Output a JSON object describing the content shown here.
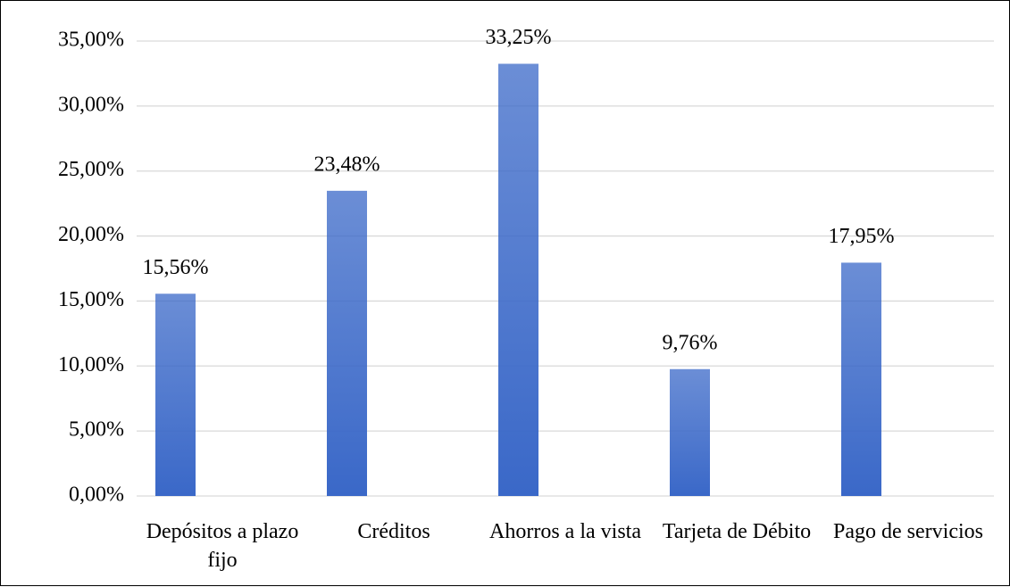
{
  "chart_data": {
    "type": "bar",
    "categories": [
      "Depósitos a plazo fijo",
      "Créditos",
      "Ahorros a la vista",
      "Tarjeta de Débito",
      "Pago de servicios"
    ],
    "values": [
      15.56,
      23.48,
      33.25,
      9.76,
      17.95
    ],
    "value_labels": [
      "15,56%",
      "23,48%",
      "33,25%",
      "9,76%",
      "17,95%"
    ],
    "color": "#3a68c8",
    "ylim": [
      0,
      35
    ],
    "yticks": [
      {
        "value": 0,
        "label": "0,00%"
      },
      {
        "value": 5,
        "label": "5,00%"
      },
      {
        "value": 10,
        "label": "10,00%"
      },
      {
        "value": 15,
        "label": "15,00%"
      },
      {
        "value": 20,
        "label": "20,00%"
      },
      {
        "value": 25,
        "label": "25,00%"
      },
      {
        "value": 30,
        "label": "30,00%"
      },
      {
        "value": 35,
        "label": "35,00%"
      }
    ],
    "grid": true
  }
}
